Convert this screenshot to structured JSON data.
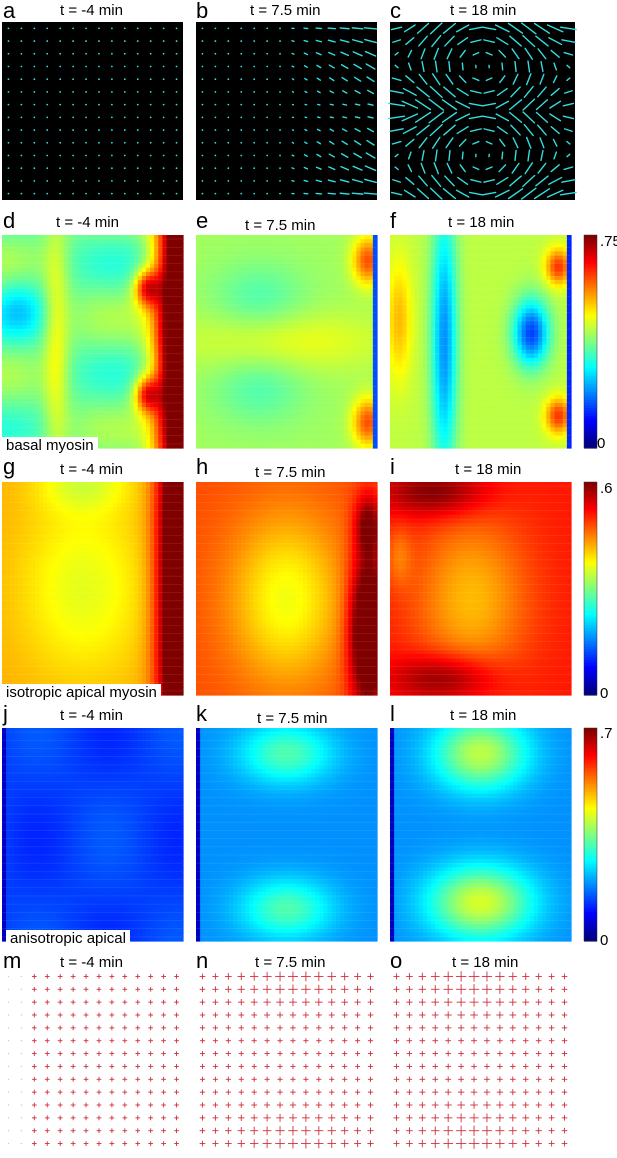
{
  "panel_labels": [
    "a",
    "b",
    "c",
    "d",
    "e",
    "f",
    "g",
    "h",
    "i",
    "j",
    "k",
    "l",
    "m",
    "n",
    "o"
  ],
  "time_labels": [
    "t = -4 min",
    "t = 7.5 min",
    "t = 18 min"
  ],
  "row_labels": {
    "basal": "basal myosin",
    "isotropic": "isotropic apical myosin",
    "anisotropic": "anisotropic apical"
  },
  "colorbars": {
    "basal": {
      "max": ".75",
      "min": "0"
    },
    "isotropic": {
      "max": ".6",
      "min": "0"
    },
    "anisotropic": {
      "max": ".7",
      "min": "0"
    }
  },
  "colors": {
    "flow_arrow": "#33dddd",
    "flow_background": "#000000",
    "stress_cross": "#d0303a",
    "stress_grid_dot": "#c8c8c8"
  },
  "colormap": "jet"
}
